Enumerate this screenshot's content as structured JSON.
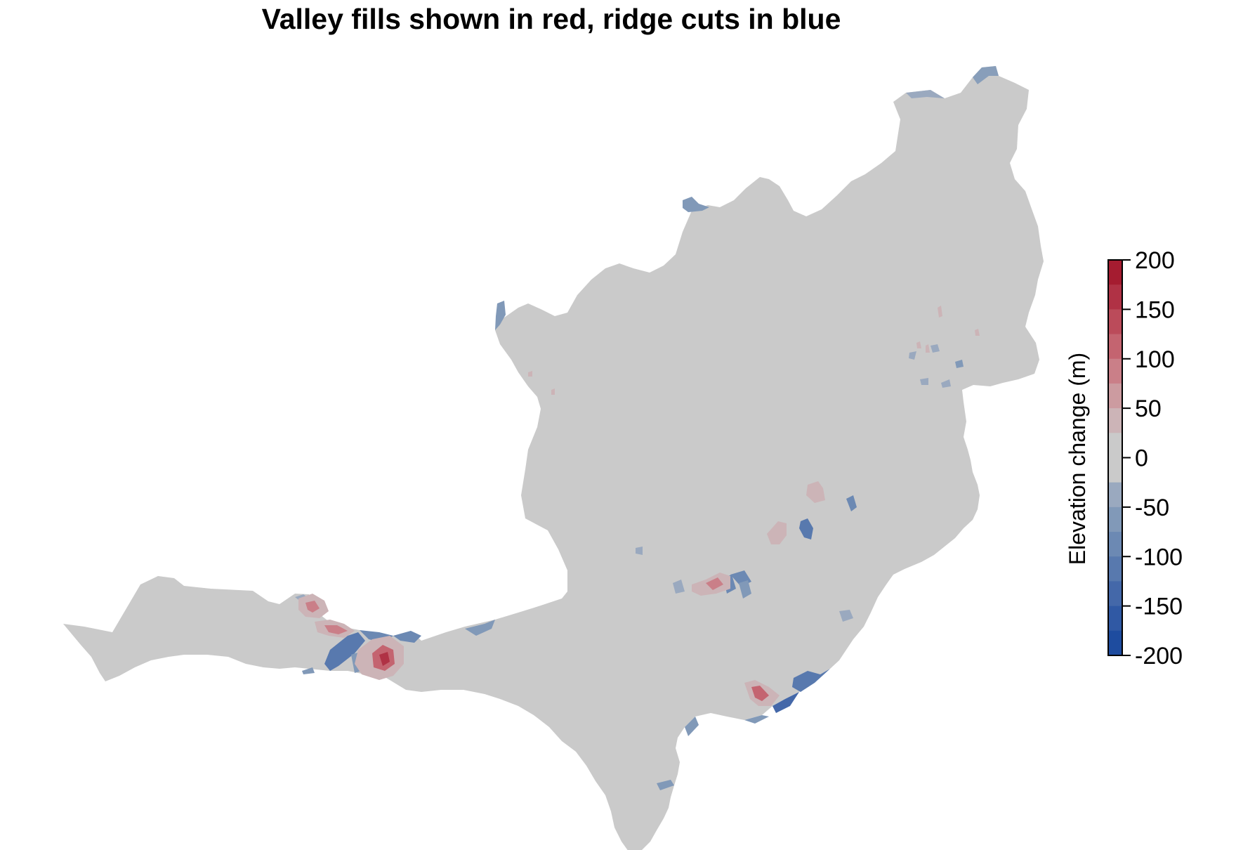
{
  "title": "Valley fills shown in red, ridge cuts in blue",
  "legend": {
    "label": "Elevation change (m)",
    "range": [
      -200,
      200
    ],
    "ticks": [
      "200",
      "150",
      "100",
      "50",
      "0",
      "-50",
      "-100",
      "-150",
      "-200"
    ],
    "bins_top_to_bottom": [
      "#A51C30",
      "#B03245",
      "#BB4B5A",
      "#C46470",
      "#CA7F88",
      "#CC9BA0",
      "#CCB4B7",
      "#CACACA",
      "#CACACA",
      "#9AA9BF",
      "#8199B8",
      "#6C89B3",
      "#5879AE",
      "#4468A9",
      "#3059A4",
      "#1E4C9F"
    ]
  },
  "colors": {
    "neutral": "#CACACA",
    "fill_high": "#A51C30",
    "cut_high": "#1E4C9F"
  }
}
